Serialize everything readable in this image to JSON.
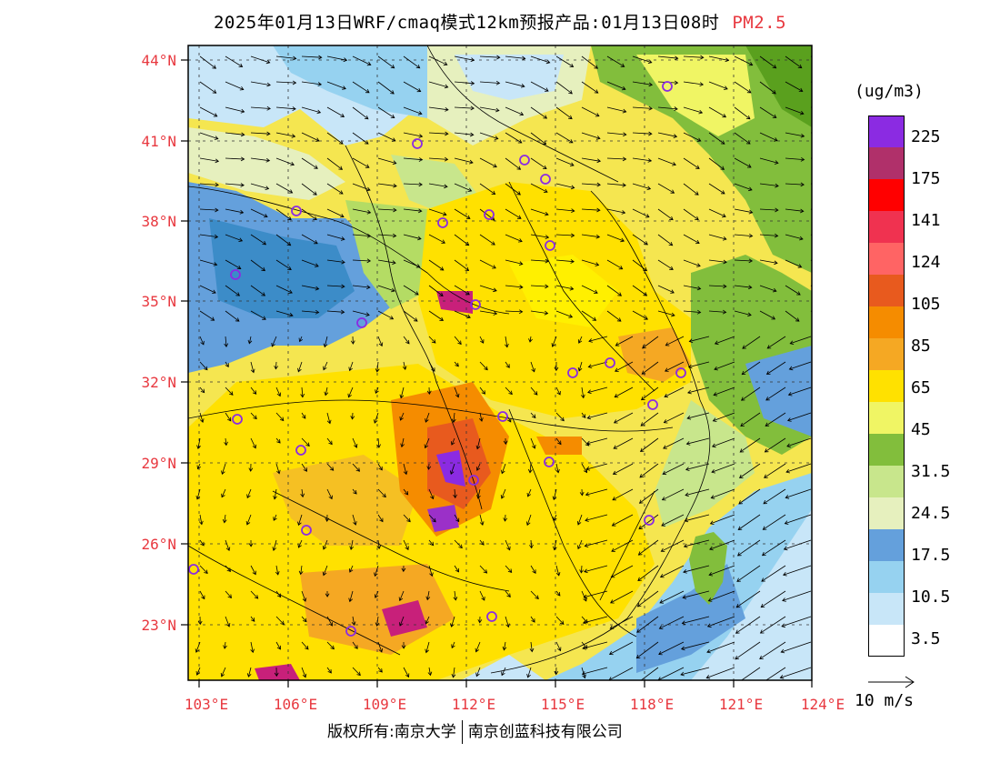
{
  "title": {
    "main": "2025年01月13日WRF/cmaq模式12km预报产品:01月13日08时",
    "variable": "PM2.5"
  },
  "axes": {
    "lat_labels": [
      "44°N",
      "41°N",
      "38°N",
      "35°N",
      "32°N",
      "29°N",
      "26°N",
      "23°N"
    ],
    "lon_labels": [
      "103°E",
      "106°E",
      "109°E",
      "112°E",
      "115°E",
      "118°E",
      "121°E",
      "124°E"
    ]
  },
  "legend": {
    "unit": "(ug/m3)",
    "levels": [
      "225",
      "175",
      "141",
      "124",
      "105",
      "85",
      "65",
      "45",
      "31.5",
      "24.5",
      "17.5",
      "10.5",
      "3.5"
    ],
    "colors": [
      "#8b2be2",
      "#9b30c8",
      "#b0306a",
      "#c8207a",
      "#ff0000",
      "#f0104a",
      "#f03250",
      "#ff6464",
      "#e85a1e",
      "#f58c00",
      "#f5a823",
      "#f5c023",
      "#ffe100",
      "#fff000",
      "#f5e650",
      "#f0f564",
      "#5aa01e",
      "#82be3c",
      "#b4dc64",
      "#c8e68c",
      "#e6f0be",
      "#3c8cc8",
      "#64a0dc",
      "#96d2f0",
      "#c8e6f8",
      "#ffffff"
    ],
    "swatch_colors": [
      "#8b2be2",
      "#b0306a",
      "#ff0000",
      "#f03250",
      "#ff6464",
      "#e85a1e",
      "#f58c00",
      "#f5a823",
      "#ffe100",
      "#fff000",
      "#f5e650",
      "#f0f564",
      "#5aa01e",
      "#82be3c",
      "#b4dc64",
      "#c8e68c",
      "#e6f0be",
      "#3c8cc8",
      "#64a0dc",
      "#96d2f0",
      "#c8e6f8",
      "#ffffff"
    ]
  },
  "wind_reference": {
    "label": "10 m/s"
  },
  "footer": {
    "left": "版权所有:南京大学",
    "right": "南京创蓝科技有限公司"
  }
}
